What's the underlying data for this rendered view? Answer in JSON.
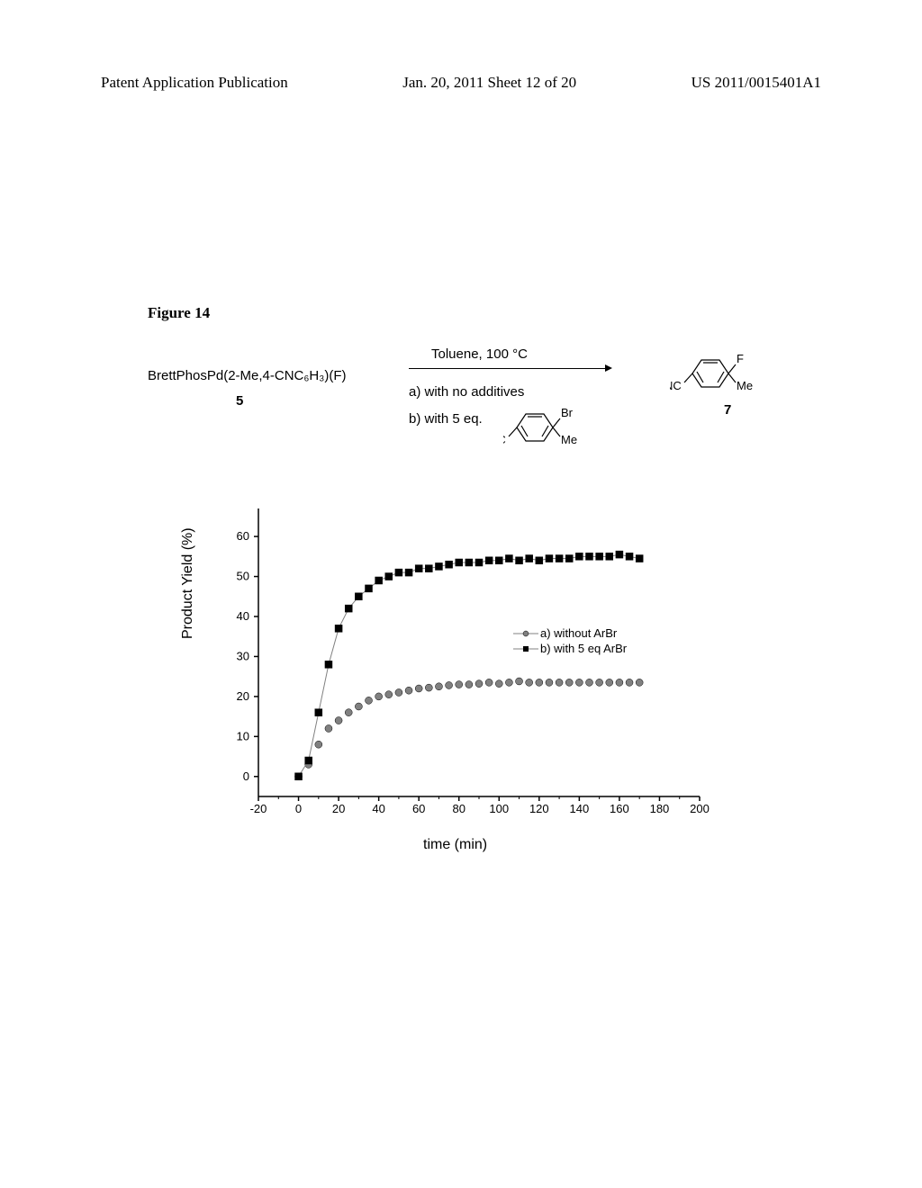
{
  "header": {
    "left": "Patent Application Publication",
    "center": "Jan. 20, 2011  Sheet 12 of 20",
    "right": "US 2011/0015401A1"
  },
  "figure_label": "Figure 14",
  "reaction": {
    "reactant_formula": "BrettPhosPd(2-Me,4-CNC₆H₃)(F)",
    "reactant_number": "5",
    "conditions_top": "Toluene, 100 °C",
    "condition_a": "a) with no additives",
    "condition_b": "b) with 5 eq.",
    "product_number": "7"
  },
  "molecules": {
    "br_benzene": {
      "ring_substituent_1": "Br",
      "ring_substituent_2": "Me",
      "ring_substituent_3": "NC"
    },
    "product": {
      "ring_substituent_1": "F",
      "ring_substituent_2": "Me",
      "ring_substituent_3": "NC"
    }
  },
  "chart": {
    "type": "scatter",
    "background_color": "#ffffff",
    "axis_color": "#000000",
    "axis_width": 1.5,
    "x_label": "time (min)",
    "y_label": "Product Yield (%)",
    "label_fontsize": 16,
    "tick_fontsize": 13,
    "xlim": [
      -20,
      200
    ],
    "ylim": [
      -5,
      67
    ],
    "x_ticks": [
      -20,
      0,
      20,
      40,
      60,
      80,
      100,
      120,
      140,
      160,
      180,
      200
    ],
    "y_ticks": [
      0,
      10,
      20,
      30,
      40,
      50,
      60
    ],
    "series": [
      {
        "name": "without_arbr",
        "label": "a) without ArBr",
        "marker": "circle",
        "marker_size": 4,
        "color": "#000000",
        "fill": "#808080",
        "line": false,
        "data": [
          [
            0,
            0
          ],
          [
            5,
            3
          ],
          [
            10,
            8
          ],
          [
            15,
            12
          ],
          [
            20,
            14
          ],
          [
            25,
            16
          ],
          [
            30,
            17.5
          ],
          [
            35,
            19
          ],
          [
            40,
            20
          ],
          [
            45,
            20.5
          ],
          [
            50,
            21
          ],
          [
            55,
            21.5
          ],
          [
            60,
            22
          ],
          [
            65,
            22.2
          ],
          [
            70,
            22.5
          ],
          [
            75,
            22.8
          ],
          [
            80,
            23
          ],
          [
            85,
            23
          ],
          [
            90,
            23.2
          ],
          [
            95,
            23.5
          ],
          [
            100,
            23.2
          ],
          [
            105,
            23.5
          ],
          [
            110,
            23.8
          ],
          [
            115,
            23.5
          ],
          [
            120,
            23.5
          ],
          [
            125,
            23.5
          ],
          [
            130,
            23.5
          ],
          [
            135,
            23.5
          ],
          [
            140,
            23.5
          ],
          [
            145,
            23.5
          ],
          [
            150,
            23.5
          ],
          [
            155,
            23.5
          ],
          [
            160,
            23.5
          ],
          [
            165,
            23.5
          ],
          [
            170,
            23.5
          ]
        ]
      },
      {
        "name": "with_arbr",
        "label": "b) with 5 eq ArBr",
        "marker": "square",
        "marker_size": 4,
        "color": "#000000",
        "fill": "#000000",
        "line": true,
        "line_color": "#808080",
        "line_width": 1,
        "data": [
          [
            0,
            0
          ],
          [
            5,
            4
          ],
          [
            10,
            16
          ],
          [
            15,
            28
          ],
          [
            20,
            37
          ],
          [
            25,
            42
          ],
          [
            30,
            45
          ],
          [
            35,
            47
          ],
          [
            40,
            49
          ],
          [
            45,
            50
          ],
          [
            50,
            51
          ],
          [
            55,
            51
          ],
          [
            60,
            52
          ],
          [
            65,
            52
          ],
          [
            70,
            52.5
          ],
          [
            75,
            53
          ],
          [
            80,
            53.5
          ],
          [
            85,
            53.5
          ],
          [
            90,
            53.5
          ],
          [
            95,
            54
          ],
          [
            100,
            54
          ],
          [
            105,
            54.5
          ],
          [
            110,
            54
          ],
          [
            115,
            54.5
          ],
          [
            120,
            54
          ],
          [
            125,
            54.5
          ],
          [
            130,
            54.5
          ],
          [
            135,
            54.5
          ],
          [
            140,
            55
          ],
          [
            145,
            55
          ],
          [
            150,
            55
          ],
          [
            155,
            55
          ],
          [
            160,
            55.5
          ],
          [
            165,
            55
          ],
          [
            170,
            54.5
          ]
        ]
      }
    ],
    "legend": {
      "position": "center-right",
      "items": [
        {
          "marker": "circle",
          "fill": "#808080",
          "line": true,
          "label": "a) without ArBr"
        },
        {
          "marker": "square",
          "fill": "#000000",
          "line": true,
          "label": "b) with 5 eq ArBr"
        }
      ]
    }
  }
}
